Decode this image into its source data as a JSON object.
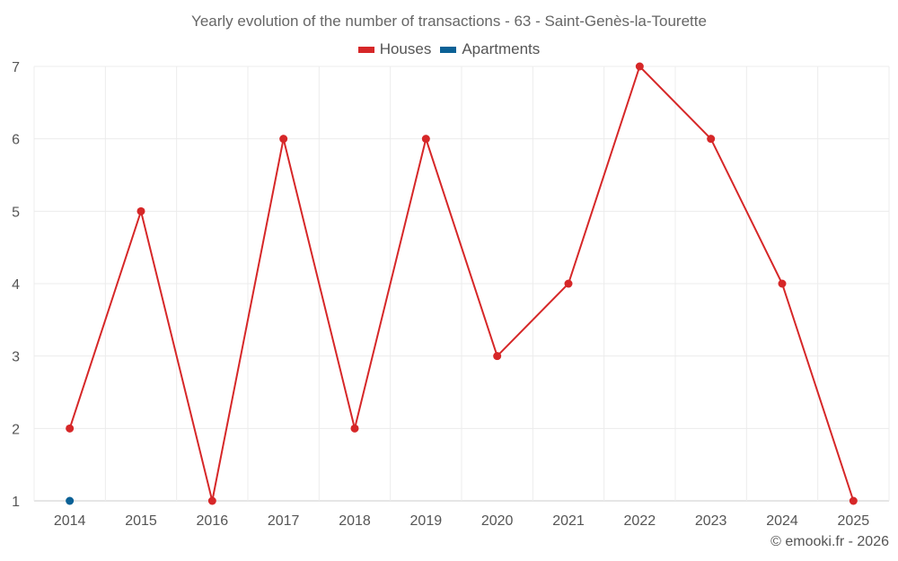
{
  "chart_data": {
    "type": "line",
    "title": "Yearly evolution of the number of transactions - 63 - Saint-Genès-la-Tourette",
    "categories": [
      "2014",
      "2015",
      "2016",
      "2017",
      "2018",
      "2019",
      "2020",
      "2021",
      "2022",
      "2023",
      "2024",
      "2025"
    ],
    "series": [
      {
        "name": "Houses",
        "color": "#d62728",
        "values": [
          2,
          5,
          1,
          6,
          2,
          6,
          3,
          4,
          7,
          6,
          4,
          1
        ]
      },
      {
        "name": "Apartments",
        "color": "#0b6196",
        "values": [
          1,
          null,
          null,
          null,
          null,
          null,
          null,
          null,
          null,
          null,
          null,
          null
        ]
      }
    ],
    "y_ticks": [
      "1",
      "2",
      "3",
      "4",
      "5",
      "6",
      "7"
    ],
    "ylim": [
      1,
      7
    ],
    "xlabel": "",
    "ylabel": "",
    "legend_position": "top-center",
    "grid": true
  },
  "footer": "© emooki.fr - 2026"
}
